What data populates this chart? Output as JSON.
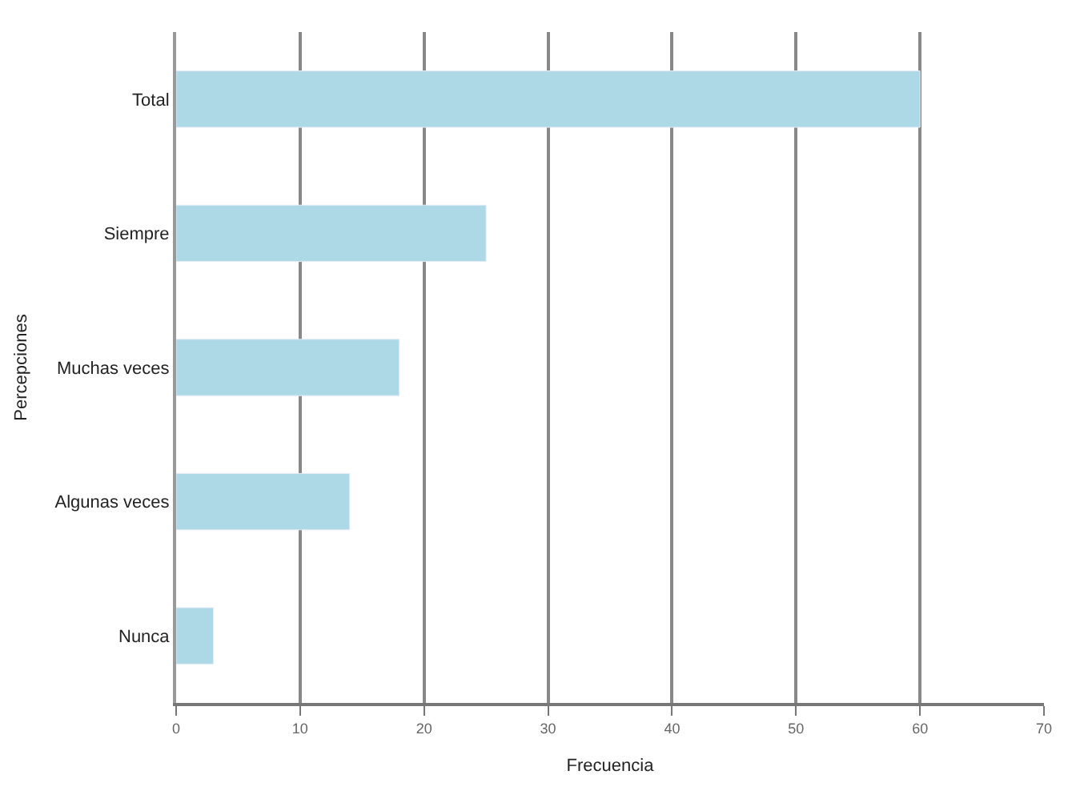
{
  "chart_data": {
    "type": "bar",
    "orientation": "horizontal",
    "xlabel": "Frecuencia",
    "ylabel": "Percepciones",
    "categories": [
      "Total",
      "Siempre",
      "Muchas veces",
      "Algunas veces",
      "Nunca"
    ],
    "values": [
      60,
      25,
      18,
      14,
      3
    ],
    "color": "#add8e6",
    "xlim": [
      0,
      70
    ],
    "xticks": [
      0,
      10,
      20,
      30,
      40,
      50,
      60,
      70
    ],
    "grid": "x"
  }
}
